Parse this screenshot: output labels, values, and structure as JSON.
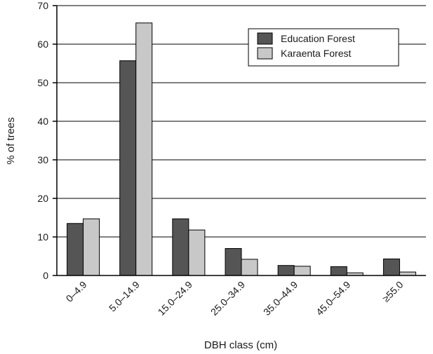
{
  "chart_data": {
    "type": "bar",
    "title": "",
    "xlabel": "DBH class (cm)",
    "ylabel": "% of trees",
    "ylim": [
      0,
      70
    ],
    "yticks": [
      0,
      10,
      20,
      30,
      40,
      50,
      60,
      70
    ],
    "grid": "horizontal",
    "legend_position": "top-right",
    "categories": [
      "0–4.9",
      "5.0–14.9",
      "15.0–24.9",
      "25.0–34.9",
      "35.0–44.9",
      "45.0–54.9",
      "≥55.0"
    ],
    "series": [
      {
        "name": "Education Forest",
        "color": "#555555",
        "values": [
          13.5,
          55.7,
          14.7,
          7.0,
          2.6,
          2.3,
          4.3
        ]
      },
      {
        "name": "Karaenta Forest",
        "color": "#c8c8c8",
        "values": [
          14.7,
          65.5,
          11.8,
          4.2,
          2.4,
          0.7,
          0.9
        ]
      }
    ]
  }
}
